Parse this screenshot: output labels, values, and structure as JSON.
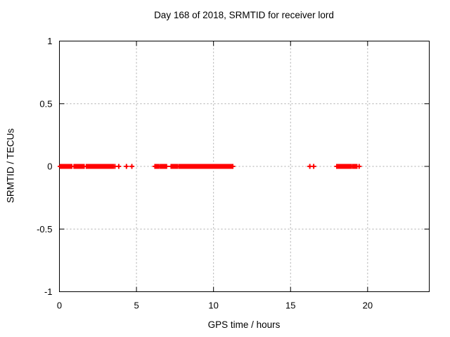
{
  "chart_data": {
    "type": "scatter",
    "title": "Day 168 of 2018, SRMTID for receiver lord",
    "xlabel": "GPS time / hours",
    "ylabel": "SRMTID / TECUs",
    "xlim": [
      0,
      24
    ],
    "ylim": [
      -1,
      1
    ],
    "xticks": [
      0,
      5,
      10,
      15,
      20
    ],
    "xtick_labels": [
      "0",
      "5",
      "10",
      "15",
      "20"
    ],
    "yticks": [
      1,
      0.5,
      0,
      -0.5,
      -1
    ],
    "ytick_labels": [
      "1",
      "0.5",
      "0",
      "-0.5",
      "-1"
    ],
    "grid": true,
    "legend": "none",
    "marker": "plus",
    "marker_color": "#ff0000",
    "grid_color": "#aaaaaa",
    "axis_color": "#000000",
    "series": [
      {
        "name": "SRMTID",
        "y_value": 0,
        "segments_x_hours": [
          [
            0.05,
            0.8
          ],
          [
            0.95,
            1.6
          ],
          [
            1.75,
            3.5
          ],
          [
            6.2,
            6.45
          ],
          [
            6.55,
            6.95
          ],
          [
            7.25,
            7.65
          ],
          [
            7.75,
            11.25
          ],
          [
            18.0,
            18.95
          ],
          [
            19.05,
            19.3
          ]
        ],
        "isolated_x_hours": [
          3.6,
          3.85,
          4.35,
          4.7,
          16.25,
          16.5,
          19.45
        ]
      }
    ]
  }
}
